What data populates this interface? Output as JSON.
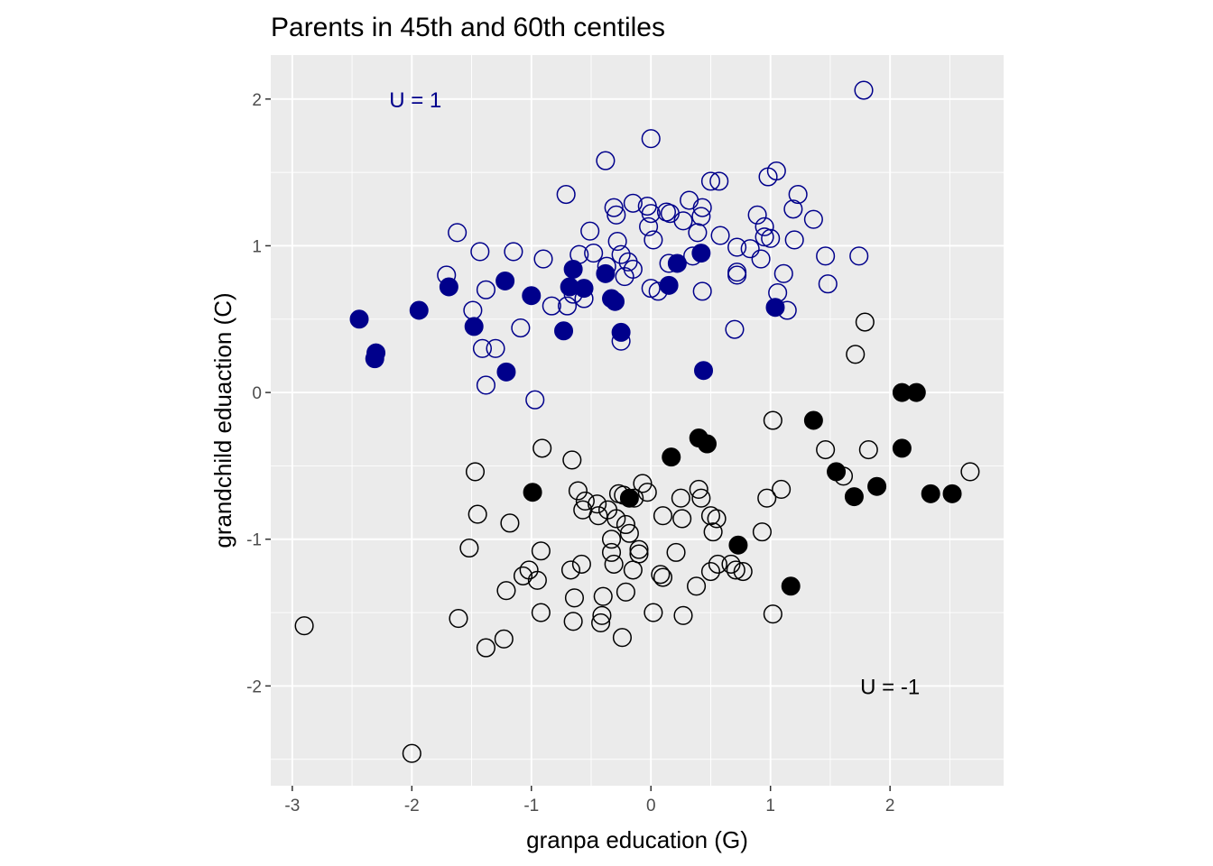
{
  "chart_data": {
    "type": "scatter",
    "title": "Parents in 45th and 60th centiles",
    "xlabel": "granpa education (G)",
    "ylabel": "grandchild eduaction (C)",
    "xlim": [
      -3.18,
      2.95
    ],
    "ylim": [
      -2.68,
      2.3
    ],
    "x_ticks": [
      -3,
      -2,
      -1,
      0,
      1,
      2
    ],
    "y_ticks": [
      -2,
      -1,
      0,
      1,
      2
    ],
    "x_tick_labels": [
      "-3",
      "-2",
      "-1",
      "0",
      "1",
      "2"
    ],
    "y_tick_labels": [
      "-2",
      "-1",
      "0",
      "1",
      "2"
    ],
    "grid": true,
    "panel_background": "#ebebeb",
    "annotations": [
      {
        "text": "U = 1",
        "x": -1.97,
        "y": 2.0,
        "color": "#00008b"
      },
      {
        "text": "U = -1",
        "x": 2.0,
        "y": -2.0,
        "color": "#000000"
      }
    ],
    "series": [
      {
        "color": "#00008b",
        "filled": false,
        "points": [
          [
            1.78,
            2.06
          ],
          [
            0.0,
            1.73
          ],
          [
            -0.38,
            1.58
          ],
          [
            1.05,
            1.51
          ],
          [
            0.98,
            1.47
          ],
          [
            0.5,
            1.44
          ],
          [
            0.57,
            1.44
          ],
          [
            -0.71,
            1.35
          ],
          [
            1.23,
            1.35
          ],
          [
            0.32,
            1.31
          ],
          [
            -0.15,
            1.29
          ],
          [
            -0.03,
            1.27
          ],
          [
            0.43,
            1.26
          ],
          [
            -0.31,
            1.26
          ],
          [
            1.19,
            1.25
          ],
          [
            0.13,
            1.23
          ],
          [
            0.16,
            1.22
          ],
          [
            0.0,
            1.22
          ],
          [
            0.89,
            1.21
          ],
          [
            -0.29,
            1.21
          ],
          [
            0.42,
            1.2
          ],
          [
            1.36,
            1.18
          ],
          [
            0.27,
            1.17
          ],
          [
            0.95,
            1.13
          ],
          [
            -0.02,
            1.13
          ],
          [
            -0.51,
            1.1
          ],
          [
            -1.62,
            1.09
          ],
          [
            0.39,
            1.09
          ],
          [
            0.58,
            1.07
          ],
          [
            0.95,
            1.06
          ],
          [
            1.0,
            1.05
          ],
          [
            1.2,
            1.04
          ],
          [
            0.02,
            1.04
          ],
          [
            -0.28,
            1.03
          ],
          [
            0.83,
            0.98
          ],
          [
            0.72,
            0.99
          ],
          [
            -1.43,
            0.96
          ],
          [
            -1.15,
            0.96
          ],
          [
            -0.48,
            0.95
          ],
          [
            -0.6,
            0.94
          ],
          [
            -0.25,
            0.94
          ],
          [
            0.35,
            0.93
          ],
          [
            1.46,
            0.93
          ],
          [
            1.74,
            0.93
          ],
          [
            0.92,
            0.91
          ],
          [
            -0.9,
            0.91
          ],
          [
            -0.19,
            0.89
          ],
          [
            0.15,
            0.88
          ],
          [
            -0.37,
            0.86
          ],
          [
            -0.15,
            0.84
          ],
          [
            1.11,
            0.81
          ],
          [
            0.72,
            0.82
          ],
          [
            0.72,
            0.8
          ],
          [
            -1.71,
            0.8
          ],
          [
            -0.22,
            0.79
          ],
          [
            -1.38,
            0.7
          ],
          [
            0.06,
            0.69
          ],
          [
            0.43,
            0.69
          ],
          [
            0.0,
            0.71
          ],
          [
            1.06,
            0.68
          ],
          [
            -0.65,
            0.67
          ],
          [
            -0.56,
            0.64
          ],
          [
            -0.7,
            0.59
          ],
          [
            -0.83,
            0.59
          ],
          [
            1.14,
            0.56
          ],
          [
            -1.49,
            0.56
          ],
          [
            1.48,
            0.74
          ],
          [
            -0.25,
            0.35
          ],
          [
            -1.41,
            0.3
          ],
          [
            -1.09,
            0.44
          ],
          [
            -1.3,
            0.3
          ],
          [
            -0.97,
            -0.05
          ],
          [
            -1.38,
            0.05
          ],
          [
            0.7,
            0.43
          ]
        ]
      },
      {
        "color": "#00008b",
        "filled": true,
        "points": [
          [
            -2.44,
            0.5
          ],
          [
            -2.3,
            0.27
          ],
          [
            -2.31,
            0.23
          ],
          [
            -1.94,
            0.56
          ],
          [
            -1.69,
            0.72
          ],
          [
            -1.48,
            0.45
          ],
          [
            -1.22,
            0.76
          ],
          [
            -1.21,
            0.14
          ],
          [
            -1.0,
            0.66
          ],
          [
            -0.73,
            0.42
          ],
          [
            -0.65,
            0.84
          ],
          [
            -0.68,
            0.72
          ],
          [
            -0.56,
            0.71
          ],
          [
            -0.38,
            0.81
          ],
          [
            -0.33,
            0.64
          ],
          [
            -0.3,
            0.62
          ],
          [
            -0.25,
            0.41
          ],
          [
            0.15,
            0.73
          ],
          [
            0.22,
            0.88
          ],
          [
            0.42,
            0.95
          ],
          [
            0.44,
            0.15
          ],
          [
            1.04,
            0.58
          ]
        ]
      },
      {
        "color": "#000000",
        "filled": false,
        "points": [
          [
            1.79,
            0.48
          ],
          [
            1.71,
            0.26
          ],
          [
            1.02,
            -0.19
          ],
          [
            1.46,
            -0.39
          ],
          [
            1.82,
            -0.39
          ],
          [
            1.61,
            -0.57
          ],
          [
            1.09,
            -0.66
          ],
          [
            0.97,
            -0.72
          ],
          [
            0.93,
            -0.95
          ],
          [
            1.02,
            -1.51
          ],
          [
            -0.91,
            -0.38
          ],
          [
            -1.47,
            -0.54
          ],
          [
            -1.45,
            -0.83
          ],
          [
            -1.18,
            -0.89
          ],
          [
            -0.66,
            -0.46
          ],
          [
            -0.61,
            -0.67
          ],
          [
            -0.55,
            -0.74
          ],
          [
            -0.57,
            -0.8
          ],
          [
            -0.07,
            -0.62
          ],
          [
            -0.03,
            -0.68
          ],
          [
            0.1,
            -0.84
          ],
          [
            -0.44,
            -0.84
          ],
          [
            -0.27,
            -0.69
          ],
          [
            -0.14,
            -0.72
          ],
          [
            -0.36,
            -0.8
          ],
          [
            -0.29,
            -0.86
          ],
          [
            -0.21,
            -0.9
          ],
          [
            -0.45,
            -0.76
          ],
          [
            -0.23,
            -0.7
          ],
          [
            0.25,
            -0.72
          ],
          [
            0.4,
            -0.66
          ],
          [
            0.42,
            -0.72
          ],
          [
            0.5,
            -0.84
          ],
          [
            0.55,
            -0.86
          ],
          [
            -0.33,
            -1.0
          ],
          [
            -1.52,
            -1.06
          ],
          [
            -0.92,
            -1.08
          ],
          [
            -0.33,
            -1.09
          ],
          [
            -0.1,
            -1.07
          ],
          [
            -0.1,
            -1.1
          ],
          [
            0.21,
            -1.09
          ],
          [
            0.26,
            -0.86
          ],
          [
            -0.31,
            -1.17
          ],
          [
            -0.58,
            -1.17
          ],
          [
            -0.67,
            -1.21
          ],
          [
            -1.02,
            -1.21
          ],
          [
            -1.07,
            -1.25
          ],
          [
            -0.95,
            -1.28
          ],
          [
            -0.15,
            -1.21
          ],
          [
            0.08,
            -1.24
          ],
          [
            0.1,
            -1.26
          ],
          [
            0.56,
            -1.17
          ],
          [
            0.67,
            -1.17
          ],
          [
            0.71,
            -1.21
          ],
          [
            0.5,
            -1.22
          ],
          [
            0.77,
            -1.22
          ],
          [
            0.38,
            -1.32
          ],
          [
            -1.21,
            -1.35
          ],
          [
            -0.64,
            -1.4
          ],
          [
            -0.21,
            -1.36
          ],
          [
            -0.4,
            -1.39
          ],
          [
            -0.41,
            -1.52
          ],
          [
            -0.42,
            -1.57
          ],
          [
            -0.92,
            -1.5
          ],
          [
            -0.65,
            -1.56
          ],
          [
            0.02,
            -1.5
          ],
          [
            0.27,
            -1.52
          ],
          [
            -1.61,
            -1.54
          ],
          [
            -2.9,
            -1.59
          ],
          [
            -1.23,
            -1.68
          ],
          [
            -1.38,
            -1.74
          ],
          [
            -0.24,
            -1.67
          ],
          [
            -2.0,
            -2.46
          ],
          [
            2.67,
            -0.54
          ],
          [
            -0.18,
            -0.96
          ],
          [
            0.52,
            -0.95
          ]
        ]
      },
      {
        "color": "#000000",
        "filled": true,
        "points": [
          [
            1.36,
            -0.19
          ],
          [
            2.1,
            0.0
          ],
          [
            2.22,
            0.0
          ],
          [
            2.1,
            -0.38
          ],
          [
            0.4,
            -0.31
          ],
          [
            0.47,
            -0.35
          ],
          [
            0.17,
            -0.44
          ],
          [
            1.55,
            -0.54
          ],
          [
            1.7,
            -0.71
          ],
          [
            1.89,
            -0.64
          ],
          [
            2.34,
            -0.69
          ],
          [
            2.52,
            -0.69
          ],
          [
            -0.99,
            -0.68
          ],
          [
            -0.18,
            -0.72
          ],
          [
            0.73,
            -1.04
          ],
          [
            1.17,
            -1.32
          ]
        ]
      }
    ]
  }
}
